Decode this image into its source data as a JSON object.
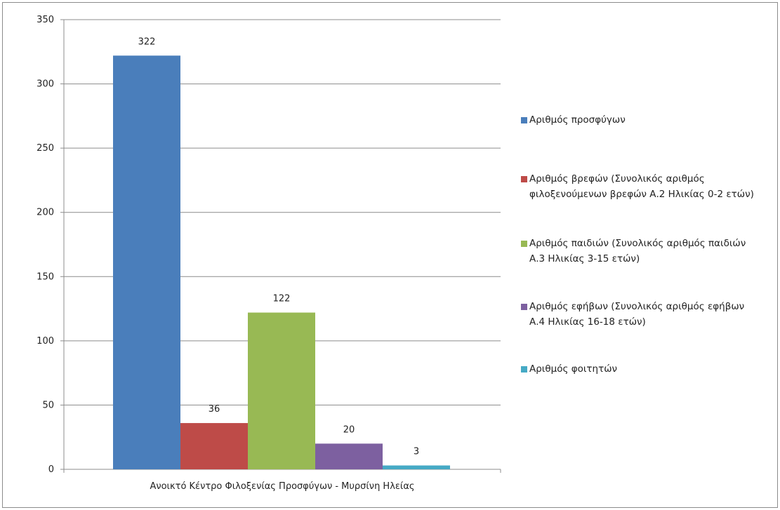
{
  "chart_data": {
    "type": "bar",
    "categories": [
      "Ανοικτό Κέντρο Φιλοξενίας Προσφύγων - Μυρσίνη Ηλείας"
    ],
    "series": [
      {
        "name": "Αριθμός προσφύγων",
        "values": [
          322
        ],
        "color": "#4a7ebb"
      },
      {
        "name": "Αριθμός βρεφών (Συνολικός αριθμός φιλοξενούμενων βρεφών Α.2 Ηλικίας 0-2 ετών)",
        "values": [
          36
        ],
        "color": "#be4b48"
      },
      {
        "name": "Αριθμός παιδιών (Συνολικός αριθμός παιδιών Α.3 Ηλικίας 3-15 ετών)",
        "values": [
          122
        ],
        "color": "#98b954"
      },
      {
        "name": "Αριθμός εφήβων (Συνολικός αριθμός εφήβων Α.4 Ηλικίας 16-18 ετών)",
        "values": [
          20
        ],
        "color": "#7d60a0"
      },
      {
        "name": "Αριθμός φοιτητών",
        "values": [
          3
        ],
        "color": "#46aac5"
      }
    ],
    "ylim": [
      0,
      350
    ],
    "yticks": [
      0,
      50,
      100,
      150,
      200,
      250,
      300,
      350
    ],
    "grid": true,
    "legend": "right"
  }
}
